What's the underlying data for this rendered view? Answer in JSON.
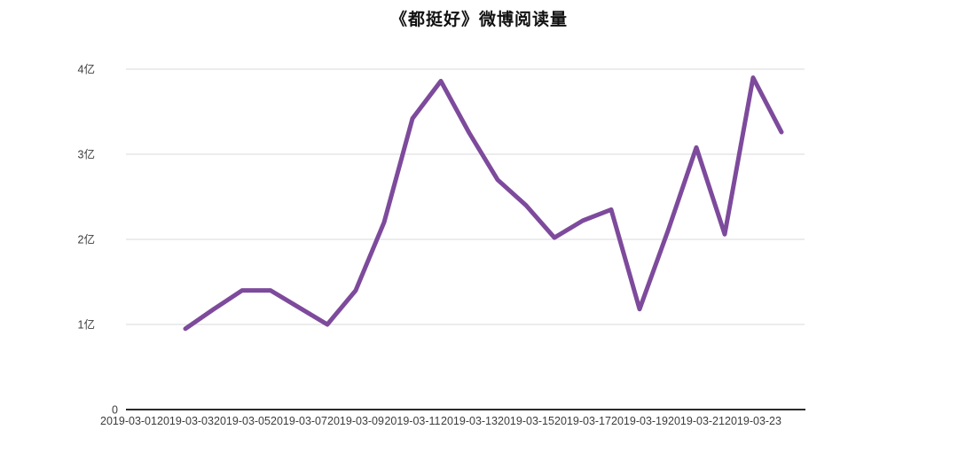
{
  "chart_data": {
    "type": "line",
    "title": "《都挺好》微博阅读量",
    "unit": "亿",
    "grid": true,
    "legend": "none",
    "ylim": [
      0,
      4
    ],
    "x": [
      "2019-03-03",
      "2019-03-04",
      "2019-03-05",
      "2019-03-06",
      "2019-03-07",
      "2019-03-08",
      "2019-03-09",
      "2019-03-10",
      "2019-03-11",
      "2019-03-12",
      "2019-03-13",
      "2019-03-14",
      "2019-03-15",
      "2019-03-16",
      "2019-03-17",
      "2019-03-18",
      "2019-03-19",
      "2019-03-20",
      "2019-03-21",
      "2019-03-22",
      "2019-03-23",
      "2019-03-24"
    ],
    "values": [
      0.95,
      1.18,
      1.4,
      1.4,
      1.2,
      1.0,
      1.4,
      2.2,
      3.42,
      3.86,
      3.25,
      2.7,
      2.4,
      2.02,
      2.22,
      2.35,
      1.18,
      2.1,
      3.08,
      2.06,
      3.9,
      3.26
    ],
    "series_name": "微博阅读量",
    "x_axis": {
      "tick_labels": [
        "2019-03-01",
        "2019-03-03",
        "2019-03-05",
        "2019-03-07",
        "2019-03-09",
        "2019-03-11",
        "2019-03-13",
        "2019-03-15",
        "2019-03-17",
        "2019-03-19",
        "2019-03-21",
        "2019-03-23"
      ]
    },
    "y_axis": {
      "tick_labels": [
        "0",
        "1亿",
        "2亿",
        "3亿",
        "4亿"
      ]
    },
    "colors": {
      "line": "#7d4a9c",
      "grid": "#e1e1e1",
      "axis": "#2b2b2b",
      "tick_text": "#3c3c3c",
      "title_text": "#111111"
    }
  }
}
